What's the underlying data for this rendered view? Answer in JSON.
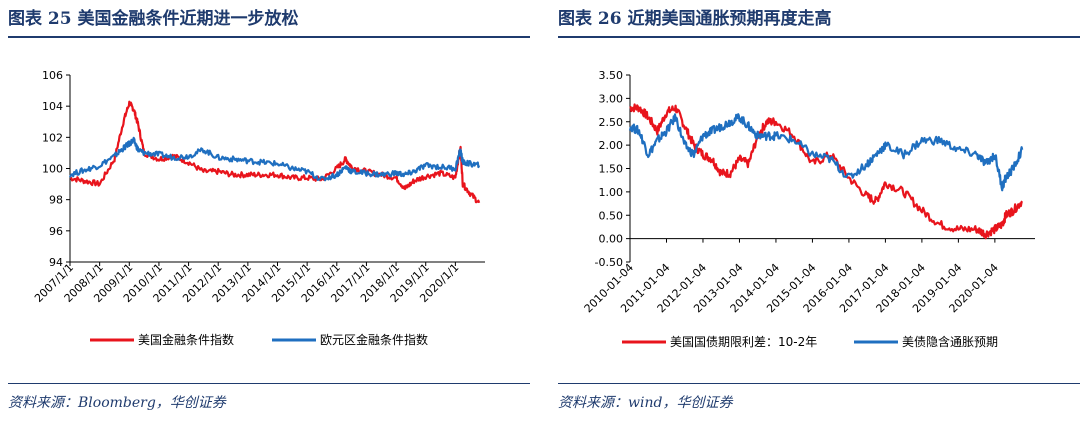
{
  "colors": {
    "red": "#e8141c",
    "blue": "#1f6fc0",
    "title": "#1f3b6e"
  },
  "left": {
    "title": "图表 25   美国金融条件近期进一步放松",
    "source": "资料来源：Bloomberg，华创证券",
    "chart_data": {
      "type": "line",
      "ylim": [
        94,
        106
      ],
      "yticks": [
        "94",
        "96",
        "98",
        "100",
        "102",
        "104",
        "106"
      ],
      "xlabels": [
        "2007/1/1",
        "2008/1/1",
        "2009/1/1",
        "2010/1/1",
        "2011/1/1",
        "2012/1/1",
        "2013/1/1",
        "2014/1/1",
        "2015/1/1",
        "2016/1/1",
        "2017/1/1",
        "2018/1/1",
        "2019/1/1",
        "2020/1/1"
      ],
      "x": [
        2007.0,
        2007.5,
        2008.0,
        2008.5,
        2008.8,
        2009.0,
        2009.15,
        2009.3,
        2009.5,
        2010.0,
        2010.5,
        2011.0,
        2011.5,
        2012.0,
        2012.5,
        2013.0,
        2013.5,
        2014.0,
        2014.5,
        2015.0,
        2015.5,
        2016.0,
        2016.3,
        2016.5,
        2017.0,
        2017.5,
        2018.0,
        2018.3,
        2018.6,
        2019.0,
        2019.5,
        2020.0,
        2020.17,
        2020.25,
        2020.5,
        2020.8
      ],
      "series": [
        {
          "name": "美国金融条件指数",
          "values": [
            99.4,
            99.2,
            99.0,
            100.6,
            103.0,
            104.2,
            103.8,
            102.8,
            101.0,
            100.6,
            100.8,
            100.4,
            99.8,
            99.8,
            99.6,
            99.6,
            99.6,
            99.6,
            99.4,
            99.4,
            99.3,
            100.0,
            100.6,
            100.1,
            99.8,
            99.6,
            99.4,
            98.7,
            99.2,
            99.5,
            99.7,
            99.4,
            101.4,
            99.0,
            98.4,
            97.8
          ]
        },
        {
          "name": "欧元区金融条件指数",
          "values": [
            99.6,
            99.9,
            100.2,
            100.8,
            101.3,
            101.6,
            101.8,
            101.2,
            101.0,
            100.9,
            100.7,
            100.8,
            101.2,
            100.7,
            100.6,
            100.5,
            100.4,
            100.3,
            100.0,
            99.8,
            99.3,
            99.6,
            100.1,
            99.8,
            99.7,
            99.6,
            99.7,
            99.6,
            99.8,
            100.2,
            100.1,
            100.0,
            101.2,
            100.4,
            100.3,
            100.2
          ]
        }
      ]
    }
  },
  "right": {
    "title": "图表 26   近期美国通胀预期再度走高",
    "source": "资料来源：wind，华创证券",
    "chart_data": {
      "type": "line",
      "ylim": [
        -0.5,
        3.5
      ],
      "yticks": [
        "-0.50",
        "0.00",
        "0.50",
        "1.00",
        "1.50",
        "2.00",
        "2.50",
        "3.00",
        "3.50"
      ],
      "xlabels": [
        "2010-01-04",
        "2011-01-04",
        "2012-01-04",
        "2013-01-04",
        "2014-01-04",
        "2015-01-04",
        "2016-01-04",
        "2017-01-04",
        "2018-01-04",
        "2019-01-04",
        "2020-01-04"
      ],
      "x": [
        2010.0,
        2010.25,
        2010.5,
        2010.75,
        2011.0,
        2011.25,
        2011.5,
        2011.75,
        2012.0,
        2012.25,
        2012.5,
        2012.75,
        2013.0,
        2013.25,
        2013.5,
        2013.75,
        2014.0,
        2014.5,
        2015.0,
        2015.5,
        2016.0,
        2016.5,
        2016.75,
        2017.0,
        2017.5,
        2018.0,
        2018.5,
        2019.0,
        2019.5,
        2019.75,
        2020.0,
        2020.2,
        2020.3,
        2020.5,
        2020.75
      ],
      "series": [
        {
          "name": "美国国债期限利差：10-2年",
          "values": [
            2.8,
            2.8,
            2.6,
            2.3,
            2.7,
            2.8,
            2.4,
            2.0,
            1.8,
            1.7,
            1.4,
            1.4,
            1.7,
            1.6,
            2.2,
            2.5,
            2.5,
            2.2,
            1.6,
            1.8,
            1.3,
            0.9,
            0.8,
            1.2,
            1.0,
            0.6,
            0.3,
            0.2,
            0.2,
            0.1,
            0.2,
            0.3,
            0.5,
            0.6,
            0.8
          ]
        },
        {
          "name": "美债隐含通胀预期",
          "values": [
            2.4,
            2.3,
            1.8,
            2.1,
            2.3,
            2.6,
            2.0,
            1.8,
            2.2,
            2.3,
            2.4,
            2.5,
            2.6,
            2.4,
            2.2,
            2.2,
            2.2,
            2.1,
            1.8,
            1.7,
            1.3,
            1.6,
            1.8,
            2.0,
            1.8,
            2.1,
            2.1,
            1.9,
            1.8,
            1.6,
            1.8,
            1.1,
            1.3,
            1.5,
            1.9
          ]
        }
      ]
    }
  }
}
